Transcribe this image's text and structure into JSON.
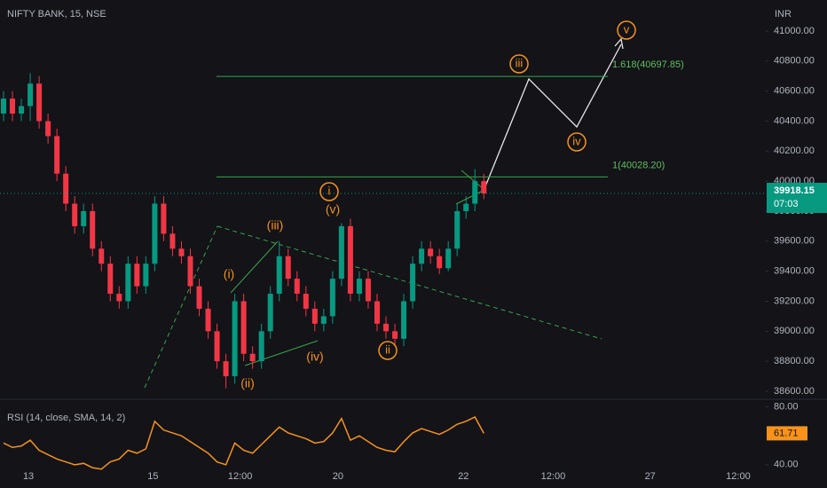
{
  "chart_data": [
    {
      "type": "candlestick",
      "title": "NIFTY BANK, 15, NSE",
      "currency": "INR",
      "up_color": "#089981",
      "down_color": "#f23645",
      "x": [
        0,
        1,
        2,
        3,
        4,
        5,
        6,
        7,
        8,
        9,
        10,
        11,
        12,
        13,
        14,
        15,
        16,
        17,
        18,
        19,
        20,
        21,
        22,
        23,
        24,
        25,
        26,
        27,
        28,
        29,
        30,
        31,
        32,
        33,
        34,
        35,
        36,
        37,
        38,
        39,
        40,
        41,
        42,
        43,
        44,
        45,
        46,
        47,
        48,
        49,
        50,
        51,
        52,
        53,
        54
      ],
      "open": [
        40450,
        40550,
        40450,
        40500,
        40650,
        40400,
        40300,
        40050,
        39850,
        39700,
        39800,
        39550,
        39450,
        39250,
        39200,
        39450,
        39300,
        39450,
        39850,
        39650,
        39550,
        39500,
        39300,
        39150,
        39000,
        38800,
        38700,
        39200,
        38850,
        38800,
        39000,
        39250,
        39500,
        39350,
        39250,
        39150,
        39050,
        39100,
        39350,
        39700,
        39250,
        39350,
        39200,
        39050,
        39000,
        38950,
        39200,
        39450,
        39550,
        39500,
        39420,
        39550,
        39800,
        39850,
        40000
      ],
      "high": [
        40600,
        40600,
        40550,
        40720,
        40700,
        40450,
        40350,
        40100,
        39900,
        39850,
        39850,
        39600,
        39500,
        39300,
        39500,
        39500,
        39500,
        39900,
        39900,
        39700,
        39600,
        39550,
        39350,
        39200,
        39050,
        38850,
        39250,
        39250,
        38900,
        39050,
        39300,
        39600,
        39550,
        39400,
        39300,
        39200,
        39150,
        39400,
        39720,
        39750,
        39400,
        39400,
        39250,
        39100,
        39050,
        39250,
        39500,
        39600,
        39600,
        39550,
        39600,
        39850,
        39900,
        40080,
        40050
      ],
      "low": [
        40400,
        40400,
        40400,
        40400,
        40350,
        40250,
        40000,
        39800,
        39650,
        39650,
        39500,
        39400,
        39200,
        39150,
        39150,
        39250,
        39250,
        39400,
        39600,
        39500,
        39450,
        39250,
        39100,
        38950,
        38750,
        38620,
        38650,
        38800,
        38750,
        38750,
        38950,
        39200,
        39300,
        39200,
        39100,
        39000,
        39000,
        39050,
        39300,
        39200,
        39200,
        39150,
        39000,
        38950,
        38900,
        38900,
        39150,
        39400,
        39450,
        39380,
        39400,
        39500,
        39750,
        39800,
        39880
      ],
      "close": [
        40550,
        40450,
        40500,
        40650,
        40400,
        40300,
        40050,
        39850,
        39700,
        39800,
        39550,
        39450,
        39250,
        39200,
        39450,
        39300,
        39450,
        39850,
        39650,
        39550,
        39500,
        39300,
        39150,
        39000,
        38800,
        38700,
        39200,
        38850,
        38800,
        39000,
        39250,
        39500,
        39350,
        39250,
        39150,
        39050,
        39100,
        39350,
        39700,
        39250,
        39350,
        39200,
        39050,
        39000,
        38950,
        39200,
        39450,
        39550,
        39500,
        39420,
        39550,
        39800,
        39850,
        40000,
        39918.15
      ],
      "last_time": "07:03",
      "xlim": [
        0,
        86
      ],
      "xticks": [
        {
          "value": 3.2,
          "label": "13"
        },
        {
          "value": 17.2,
          "label": "15"
        },
        {
          "value": 27,
          "label": "12:00"
        },
        {
          "value": 38,
          "label": "20"
        },
        {
          "value": 52.1,
          "label": "22"
        },
        {
          "value": 62.2,
          "label": "12:00"
        },
        {
          "value": 73.1,
          "label": "27"
        },
        {
          "value": 83,
          "label": "12:00"
        }
      ],
      "ylim": [
        38600,
        41000
      ],
      "yticks": [
        {
          "value": 41000,
          "label": "41000.00"
        },
        {
          "value": 40800,
          "label": "40800.00"
        },
        {
          "value": 40600,
          "label": "40600.00"
        },
        {
          "value": 40400,
          "label": "40400.00"
        },
        {
          "value": 40200,
          "label": "40200.00"
        },
        {
          "value": 40000,
          "label": "40000.00"
        },
        {
          "value": 39800,
          "label": "39800.00"
        },
        {
          "value": 39600,
          "label": "39600.00"
        },
        {
          "value": 39400,
          "label": "39400.00"
        },
        {
          "value": 39200,
          "label": "39200.00"
        },
        {
          "value": 39000,
          "label": "39000.00"
        },
        {
          "value": 38800,
          "label": "38800.00"
        },
        {
          "value": 38600,
          "label": "38600.00"
        }
      ],
      "levels": [
        {
          "value": 40697.85,
          "label": "1.618(40697.85)"
        },
        {
          "value": 40028.2,
          "label": "1(40028.20)"
        }
      ],
      "wave_labels": [
        "v",
        "iii",
        "iv",
        "i",
        "ii"
      ],
      "sub_wave_labels": [
        "(v)",
        "(iii)",
        "(i)",
        "(iv)",
        "(ii)"
      ]
    },
    {
      "type": "line",
      "title": "RSI (14, close, SMA, 14, 2)",
      "color": "#f7931a",
      "x": [
        0,
        1,
        2,
        3,
        4,
        5,
        6,
        7,
        8,
        9,
        10,
        11,
        12,
        13,
        14,
        15,
        16,
        17,
        18,
        19,
        20,
        21,
        22,
        23,
        24,
        25,
        26,
        27,
        28,
        29,
        30,
        31,
        32,
        33,
        34,
        35,
        36,
        37,
        38,
        39,
        40,
        41,
        42,
        43,
        44,
        45,
        46,
        47,
        48,
        49,
        50,
        51,
        52,
        53,
        54
      ],
      "values": [
        55,
        52,
        53,
        57,
        50,
        47,
        44,
        42,
        40,
        41,
        38,
        37,
        42,
        44,
        50,
        48,
        51,
        70,
        64,
        62,
        60,
        56,
        52,
        48,
        42,
        40,
        55,
        50,
        48,
        54,
        60,
        66,
        62,
        60,
        58,
        55,
        56,
        62,
        72,
        57,
        60,
        56,
        52,
        50,
        49,
        56,
        62,
        65,
        63,
        61,
        64,
        68,
        70,
        73,
        61.71
      ],
      "xlim": [
        0,
        86
      ],
      "ylim": [
        35,
        84
      ],
      "yticks": [
        {
          "value": 80,
          "label": "80.00"
        },
        {
          "value": 40,
          "label": "40.00"
        }
      ]
    }
  ]
}
